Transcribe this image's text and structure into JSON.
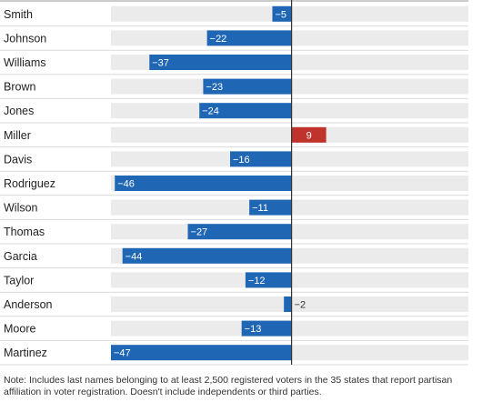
{
  "colors": {
    "negative": "#1f67b5",
    "positive": "#c0322c",
    "track": "#ebebeb",
    "separator": "#d9d9d9",
    "axis": "#333333",
    "text": "#222222"
  },
  "chart_data": {
    "type": "bar",
    "orientation": "horizontal",
    "categories": [
      "Smith",
      "Johnson",
      "Williams",
      "Brown",
      "Jones",
      "Miller",
      "Davis",
      "Rodriguez",
      "Wilson",
      "Thomas",
      "Garcia",
      "Taylor",
      "Anderson",
      "Moore",
      "Martinez"
    ],
    "values": [
      -5,
      -22,
      -37,
      -23,
      -24,
      9,
      -16,
      -46,
      -11,
      -27,
      -44,
      -12,
      -2,
      -13,
      -47
    ],
    "labels": [
      "−5",
      "−22",
      "−37",
      "−23",
      "−24",
      "9",
      "−16",
      "−46",
      "−11",
      "−27",
      "−44",
      "−12",
      "−2",
      "−13",
      "−47"
    ],
    "xlim": [
      -47,
      46
    ],
    "grid": false,
    "title": "",
    "xlabel": "",
    "ylabel": ""
  },
  "note": "Note: Includes last names belonging to at least 2,500 registered voters in the 35 states that report partisan affiliation in voter registration. Doesn't include independents or third parties."
}
